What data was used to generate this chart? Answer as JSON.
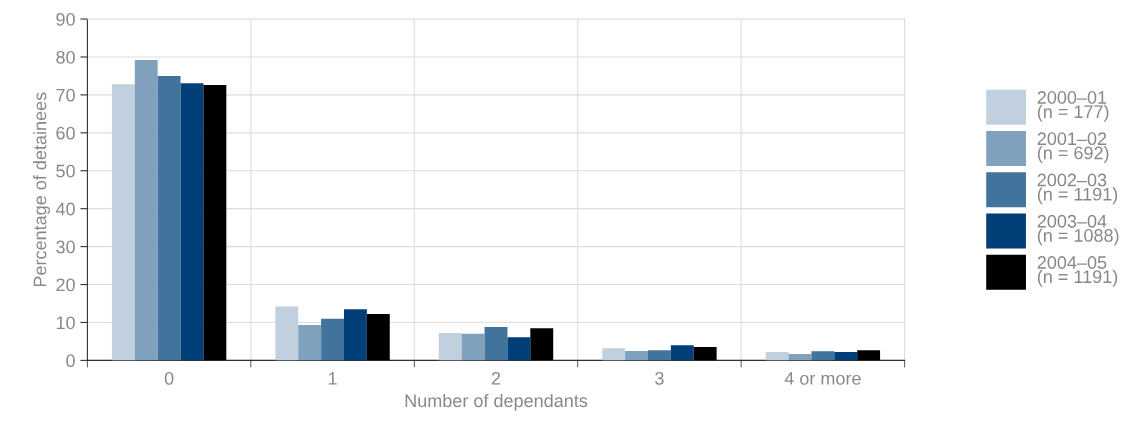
{
  "chart_data": {
    "type": "bar",
    "xlabel": "Number of dependants",
    "ylabel": "Percentage of detainees",
    "categories": [
      "0",
      "1",
      "2",
      "3",
      "4 or more"
    ],
    "series": [
      {
        "name": "2000–01\n(n = 177)",
        "color": "#c0d0de",
        "values": [
          72.8,
          14.2,
          7.2,
          3.2,
          2.2
        ]
      },
      {
        "name": "2001–02\n(n = 692)",
        "color": "#7fa1bd",
        "values": [
          79.2,
          9.3,
          7.0,
          2.5,
          1.7
        ]
      },
      {
        "name": "2002–03\n(n = 1191)",
        "color": "#41739c",
        "values": [
          75.0,
          11.0,
          8.8,
          2.7,
          2.4
        ]
      },
      {
        "name": "2003–04\n(n = 1088)",
        "color": "#003f77",
        "values": [
          73.1,
          13.5,
          6.1,
          4.0,
          2.2
        ]
      },
      {
        "name": "2004–05\n(n = 1191)",
        "color": "#000000",
        "values": [
          72.6,
          12.2,
          8.5,
          3.5,
          2.7
        ]
      }
    ],
    "ylim": [
      0,
      90
    ],
    "yticks": [
      0,
      10,
      20,
      30,
      40,
      50,
      60,
      70,
      80,
      90
    ],
    "grid": true,
    "legend": "right"
  }
}
